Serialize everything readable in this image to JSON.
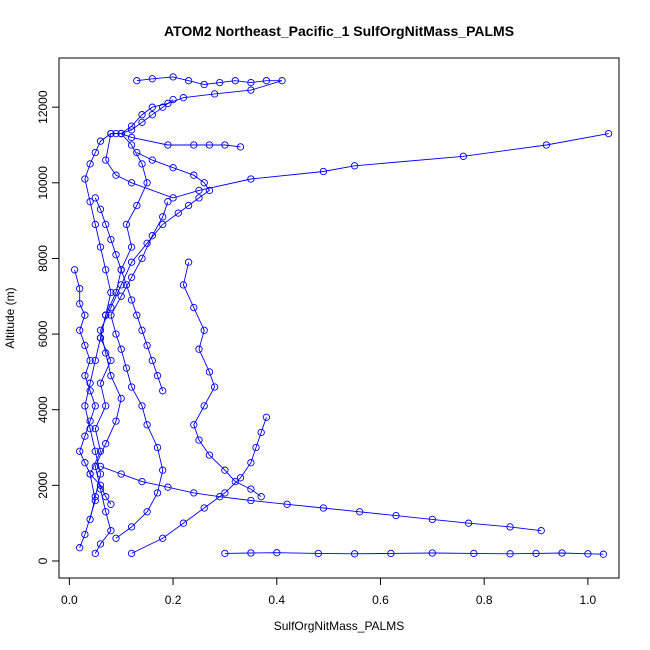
{
  "chart_data": {
    "type": "line",
    "title": "ATOM2 Northeast_Pacific_1 SulfOrgNitMass_PALMS",
    "xlabel": "SulfOrgNitMass_PALMS",
    "ylabel": "Altitude (m)",
    "xlim": [
      -0.02,
      1.06
    ],
    "ylim": [
      -450,
      13300
    ],
    "x_ticks": [
      0.0,
      0.2,
      0.4,
      0.6,
      0.8,
      1.0
    ],
    "x_tick_labels": [
      "0.0",
      "0.2",
      "0.4",
      "0.6",
      "0.8",
      "1.0"
    ],
    "y_ticks": [
      0,
      2000,
      4000,
      6000,
      8000,
      10000,
      12000
    ],
    "y_tick_labels": [
      "0",
      "2000",
      "4000",
      "6000",
      "8000",
      "10000",
      "12000"
    ],
    "grid": false,
    "marker": "open-circle",
    "series_color": "#0000ff",
    "series": [
      {
        "x": [
          0.02,
          0.03,
          0.05,
          0.04,
          0.06,
          0.05,
          0.07,
          0.06,
          0.08,
          0.06,
          0.07,
          0.09,
          0.1,
          0.12,
          0.11,
          0.13,
          0.15,
          0.14,
          0.12,
          0.1,
          0.09,
          0.08,
          0.07,
          0.09,
          0.12,
          0.2,
          0.25,
          0.35,
          0.49,
          0.55,
          0.76,
          0.92,
          1.04
        ],
        "y": [
          350,
          700,
          1600,
          2300,
          2900,
          3500,
          4100,
          4700,
          5300,
          5900,
          6500,
          7100,
          7700,
          8300,
          8900,
          9400,
          10000,
          10500,
          11000,
          11300,
          11300,
          11300,
          10600,
          10200,
          10000,
          9600,
          9800,
          10100,
          10300,
          10450,
          10700,
          11000,
          11300
        ]
      },
      {
        "x": [
          0.05,
          0.06,
          0.08,
          0.07,
          0.06,
          0.05,
          0.07,
          0.09,
          0.1,
          0.08,
          0.07,
          0.06,
          0.08,
          0.1,
          0.12,
          0.15,
          0.18,
          0.21,
          0.23,
          0.25,
          0.27,
          0.26,
          0.24,
          0.2,
          0.16,
          0.13
        ],
        "y": [
          200,
          450,
          800,
          1300,
          1900,
          2500,
          3100,
          3700,
          4300,
          4900,
          5500,
          6100,
          6700,
          7300,
          7900,
          8400,
          8900,
          9200,
          9400,
          9600,
          9800,
          10000,
          10200,
          10400,
          10600,
          10800
        ]
      },
      {
        "x": [
          0.09,
          0.12,
          0.15,
          0.17,
          0.18,
          0.17,
          0.15,
          0.14,
          0.12,
          0.11,
          0.1,
          0.09,
          0.08,
          0.1,
          0.12,
          0.14,
          0.16,
          0.18,
          0.19
        ],
        "y": [
          600,
          900,
          1300,
          1800,
          2400,
          3000,
          3600,
          4100,
          4600,
          5100,
          5600,
          6000,
          6500,
          7000,
          7500,
          8000,
          8600,
          9100,
          9500
        ]
      },
      {
        "x": [
          0.04,
          0.05,
          0.06,
          0.05,
          0.04,
          0.03,
          0.04,
          0.05,
          0.06,
          0.07,
          0.08,
          0.07,
          0.06,
          0.05,
          0.04,
          0.03,
          0.04,
          0.05,
          0.06,
          0.08,
          0.1,
          0.12,
          0.14,
          0.16,
          0.18,
          0.2
        ],
        "y": [
          1100,
          1700,
          2300,
          2900,
          3500,
          4100,
          4700,
          5300,
          5900,
          6500,
          7100,
          7700,
          8300,
          8900,
          9500,
          10100,
          10500,
          10800,
          11100,
          11300,
          11300,
          11400,
          11600,
          11800,
          12000,
          12200
        ]
      },
      {
        "x": [
          0.3,
          0.35,
          0.4,
          0.48,
          0.55,
          0.62,
          0.7,
          0.78,
          0.85,
          0.9,
          0.95,
          1.0,
          1.03
        ],
        "y": [
          200,
          210,
          220,
          200,
          190,
          200,
          210,
          200,
          190,
          200,
          210,
          190,
          180
        ]
      },
      {
        "x": [
          0.12,
          0.18,
          0.22,
          0.26,
          0.3,
          0.33,
          0.35,
          0.36,
          0.37,
          0.38
        ],
        "y": [
          200,
          600,
          1000,
          1400,
          1800,
          2200,
          2600,
          3000,
          3400,
          3800
        ]
      },
      {
        "x": [
          0.06,
          0.1,
          0.14,
          0.19,
          0.24,
          0.29,
          0.35,
          0.42,
          0.49,
          0.56,
          0.63,
          0.7,
          0.77,
          0.85,
          0.91
        ],
        "y": [
          2500,
          2300,
          2100,
          1950,
          1800,
          1700,
          1600,
          1500,
          1400,
          1300,
          1200,
          1100,
          1000,
          900,
          800
        ]
      },
      {
        "x": [
          0.13,
          0.16,
          0.2,
          0.23,
          0.26,
          0.29,
          0.32,
          0.35,
          0.38,
          0.41,
          0.35,
          0.28,
          0.22,
          0.19,
          0.16,
          0.14,
          0.12,
          0.1,
          0.12,
          0.19,
          0.24,
          0.27,
          0.3,
          0.33
        ],
        "y": [
          12700,
          12750,
          12800,
          12700,
          12600,
          12650,
          12700,
          12650,
          12700,
          12700,
          12450,
          12350,
          12250,
          12100,
          12000,
          11800,
          11500,
          11300,
          11200,
          11000,
          11000,
          11000,
          11000,
          10950
        ]
      },
      {
        "x": [
          0.01,
          0.02,
          0.02,
          0.03,
          0.02,
          0.03,
          0.04,
          0.03,
          0.04,
          0.05,
          0.04,
          0.03,
          0.02,
          0.03,
          0.04,
          0.06,
          0.07,
          0.08
        ],
        "y": [
          7700,
          7200,
          6800,
          6500,
          6100,
          5700,
          5300,
          4900,
          4500,
          4100,
          3700,
          3300,
          2900,
          2600,
          2300,
          2000,
          1700,
          1500
        ]
      },
      {
        "x": [
          0.23,
          0.22,
          0.24,
          0.26,
          0.25,
          0.27,
          0.28,
          0.26,
          0.24,
          0.25,
          0.27,
          0.3,
          0.32,
          0.35,
          0.37
        ],
        "y": [
          7900,
          7300,
          6700,
          6100,
          5600,
          5000,
          4600,
          4100,
          3600,
          3200,
          2800,
          2400,
          2100,
          1900,
          1700
        ]
      },
      {
        "x": [
          0.05,
          0.06,
          0.07,
          0.08,
          0.09,
          0.1,
          0.11,
          0.12,
          0.13,
          0.14,
          0.15,
          0.16,
          0.17,
          0.18
        ],
        "y": [
          9600,
          9300,
          8900,
          8500,
          8100,
          7700,
          7300,
          6900,
          6500,
          6100,
          5700,
          5300,
          4900,
          4500
        ]
      }
    ]
  }
}
